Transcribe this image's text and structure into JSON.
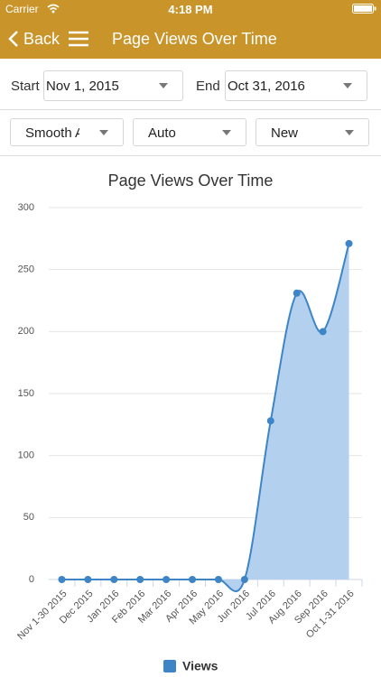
{
  "status_bar": {
    "carrier": "Carrier",
    "time": "4:18 PM"
  },
  "nav_bar": {
    "back": "Back",
    "title": "Page Views Over Time"
  },
  "filters": {
    "start_label": "Start",
    "start_value": "Nov 1, 2015",
    "end_label": "End",
    "end_value": "Oct 31, 2016",
    "chart_style": "Smooth Area",
    "interval": "Auto",
    "visitor_type": "New"
  },
  "chart_data": {
    "type": "area",
    "title": "Page Views Over Time",
    "categories": [
      "Nov 1-30 2015",
      "Dec 2015",
      "Jan 2016",
      "Feb 2016",
      "Mar 2016",
      "Apr 2016",
      "May 2016",
      "Jun 2016",
      "Jul 2016",
      "Aug 2016",
      "Sep 2016",
      "Oct 1-31 2016"
    ],
    "series": [
      {
        "name": "Views",
        "color": "#3d85c6",
        "fill": "#b3d1ee",
        "values": [
          0,
          0,
          0,
          0,
          0,
          0,
          0,
          0,
          128,
          231,
          200,
          271
        ]
      }
    ],
    "ylim": [
      0,
      300
    ],
    "yticks": [
      0,
      50,
      100,
      150,
      200,
      250,
      300
    ],
    "grid": true,
    "smooth": true,
    "legend": "bottom"
  }
}
